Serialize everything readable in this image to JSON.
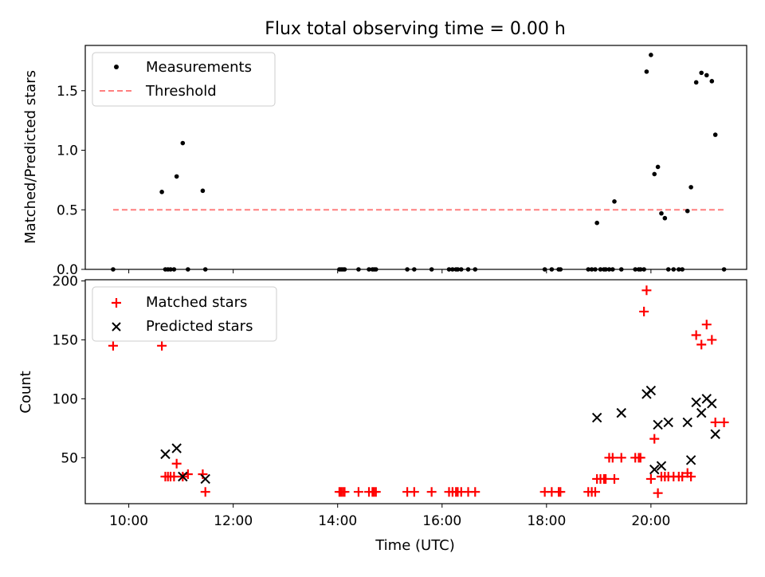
{
  "title": "Flux total observing time = 0.00 h",
  "chart_data": [
    {
      "type": "scatter",
      "ylabel": "Matched/Predicted stars",
      "ylim": [
        0,
        1.88
      ],
      "yticks": [
        0,
        0.5,
        1.0,
        1.5
      ],
      "ytick_labels": [
        "0.0",
        "0.5",
        "1.0",
        "1.5"
      ],
      "legend": {
        "placement": "top-left",
        "entries": [
          "Measurements",
          "Threshold"
        ]
      },
      "series": [
        {
          "name": "Measurements",
          "color": "#000000",
          "marker": "dot",
          "x": [
            "09:42",
            "10:38",
            "10:42",
            "10:45",
            "10:48",
            "10:52",
            "10:55",
            "11:02",
            "11:08",
            "11:25",
            "11:28",
            "14:02",
            "14:04",
            "14:06",
            "14:08",
            "14:24",
            "14:36",
            "14:40",
            "14:42",
            "14:44",
            "15:20",
            "15:28",
            "15:48",
            "16:08",
            "16:12",
            "16:16",
            "16:18",
            "16:22",
            "16:30",
            "16:38",
            "17:58",
            "18:06",
            "18:14",
            "18:16",
            "18:48",
            "18:52",
            "18:56",
            "18:58",
            "19:02",
            "19:06",
            "19:08",
            "19:12",
            "19:16",
            "19:18",
            "19:26",
            "19:42",
            "19:46",
            "19:48",
            "19:52",
            "19:55",
            "20:00",
            "20:04",
            "20:08",
            "20:12",
            "20:16",
            "20:20",
            "20:26",
            "20:32",
            "20:36",
            "20:42",
            "20:46",
            "20:52",
            "20:58",
            "21:04",
            "21:10",
            "21:14",
            "21:24"
          ],
          "y": [
            0,
            0.65,
            0,
            0,
            0,
            0,
            0.78,
            1.06,
            0,
            0.66,
            0,
            0,
            0,
            0,
            0,
            0,
            0,
            0,
            0,
            0,
            0,
            0,
            0,
            0,
            0,
            0,
            0,
            0,
            0,
            0,
            0,
            0,
            0,
            0,
            0,
            0,
            0,
            0.39,
            0,
            0,
            0,
            0,
            0,
            0.57,
            0,
            0,
            0,
            0,
            0,
            1.66,
            1.8,
            0.8,
            0.86,
            0.47,
            0.43,
            0,
            0,
            0,
            0,
            0.49,
            0.69,
            1.57,
            1.65,
            1.63,
            1.58,
            1.13,
            0
          ]
        },
        {
          "name": "Threshold",
          "color": "#ff7f7f",
          "style": "dashed",
          "x": [
            "09:42",
            "21:24"
          ],
          "y": [
            0.5,
            0.5
          ]
        }
      ]
    },
    {
      "type": "scatter",
      "xlabel": "Time (UTC)",
      "ylabel": "Count",
      "xlim": [
        "09:10",
        "21:50"
      ],
      "xticks": [
        "10:00",
        "12:00",
        "14:00",
        "16:00",
        "18:00",
        "20:00"
      ],
      "ylim": [
        11,
        201
      ],
      "yticks": [
        50,
        100,
        150,
        200
      ],
      "ytick_labels": [
        "50",
        "100",
        "150",
        "200"
      ],
      "legend": {
        "placement": "top-left",
        "entries": [
          "Matched stars",
          "Predicted stars"
        ]
      },
      "series": [
        {
          "name": "Matched stars",
          "color": "#ff0000",
          "marker": "plus",
          "x": [
            "09:42",
            "10:38",
            "10:42",
            "10:45",
            "10:48",
            "10:52",
            "10:55",
            "11:02",
            "11:08",
            "11:25",
            "11:28",
            "14:02",
            "14:04",
            "14:06",
            "14:08",
            "14:24",
            "14:36",
            "14:40",
            "14:42",
            "14:44",
            "15:20",
            "15:28",
            "15:48",
            "16:08",
            "16:12",
            "16:16",
            "16:18",
            "16:22",
            "16:30",
            "16:38",
            "17:58",
            "18:06",
            "18:14",
            "18:16",
            "18:48",
            "18:52",
            "18:56",
            "18:58",
            "19:02",
            "19:06",
            "19:08",
            "19:12",
            "19:16",
            "19:18",
            "19:26",
            "19:42",
            "19:46",
            "19:48",
            "19:52",
            "19:55",
            "20:00",
            "20:04",
            "20:08",
            "20:12",
            "20:16",
            "20:20",
            "20:26",
            "20:32",
            "20:36",
            "20:42",
            "20:46",
            "20:52",
            "20:58",
            "21:04",
            "21:10",
            "21:14",
            "21:24"
          ],
          "y": [
            145,
            145,
            34,
            34,
            34,
            34,
            45,
            34,
            36,
            36,
            21,
            21,
            21,
            21,
            21,
            21,
            21,
            21,
            21,
            21,
            21,
            21,
            21,
            21,
            21,
            21,
            21,
            21,
            21,
            21,
            21,
            21,
            21,
            21,
            21,
            21,
            21,
            32,
            32,
            32,
            32,
            50,
            50,
            32,
            50,
            50,
            50,
            50,
            174,
            192,
            32,
            66,
            20,
            34,
            34,
            34,
            34,
            34,
            34,
            37,
            34,
            154,
            146,
            163,
            150,
            80,
            80
          ]
        },
        {
          "name": "Predicted stars",
          "color": "#000000",
          "marker": "cross",
          "x": [
            "10:42",
            "10:55",
            "11:02",
            "11:28",
            "18:58",
            "19:26",
            "19:55",
            "20:00",
            "20:04",
            "20:08",
            "20:12",
            "20:20",
            "20:42",
            "20:46",
            "20:52",
            "20:58",
            "21:04",
            "21:10",
            "21:14"
          ],
          "y": [
            53,
            58,
            34,
            32,
            84,
            88,
            104,
            107,
            40,
            78,
            43,
            80,
            80,
            48,
            97,
            88,
            100,
            96,
            70
          ]
        }
      ]
    }
  ]
}
